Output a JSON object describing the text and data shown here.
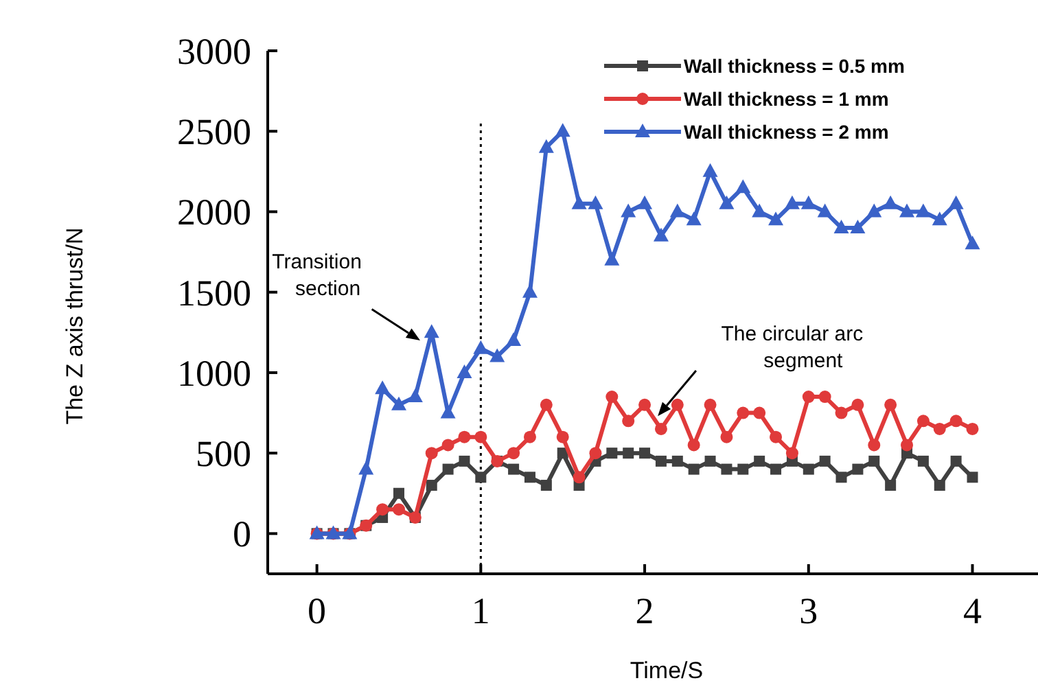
{
  "chart_data": {
    "type": "line",
    "xlabel": "Time/S",
    "ylabel": "The Z axis thrust/N",
    "x": [
      0,
      0.1,
      0.2,
      0.3,
      0.4,
      0.5,
      0.6,
      0.7,
      0.8,
      0.9,
      1,
      1.1,
      1.2,
      1.3,
      1.4,
      1.5,
      1.6,
      1.7,
      1.8,
      1.9,
      2,
      2.1,
      2.2,
      2.3,
      2.4,
      2.5,
      2.6,
      2.7,
      2.8,
      2.9,
      3,
      3.1,
      3.2,
      3.3,
      3.4,
      3.5,
      3.6,
      3.7,
      3.8,
      3.9,
      4
    ],
    "series": [
      {
        "name": "Wall thickness = 0.5 mm",
        "color": "#404040",
        "marker": "square",
        "values": [
          0,
          0,
          0,
          50,
          100,
          250,
          100,
          300,
          400,
          450,
          350,
          450,
          400,
          350,
          300,
          500,
          300,
          450,
          500,
          500,
          500,
          450,
          450,
          400,
          450,
          400,
          400,
          450,
          400,
          450,
          400,
          450,
          350,
          400,
          450,
          300,
          500,
          450,
          300,
          450,
          350
        ]
      },
      {
        "name": "Wall thickness = 1 mm",
        "color": "#e03a3a",
        "marker": "circle",
        "values": [
          0,
          0,
          0,
          50,
          150,
          150,
          100,
          500,
          550,
          600,
          600,
          450,
          500,
          600,
          800,
          600,
          350,
          500,
          850,
          700,
          800,
          650,
          800,
          550,
          800,
          600,
          750,
          750,
          600,
          500,
          850,
          850,
          750,
          800,
          550,
          800,
          550,
          700,
          650,
          700,
          650
        ]
      },
      {
        "name": "Wall thickness = 2 mm",
        "color": "#3a62c8",
        "marker": "triangle",
        "values": [
          0,
          0,
          0,
          400,
          900,
          800,
          850,
          1250,
          750,
          1000,
          1150,
          1100,
          1200,
          1500,
          2400,
          2500,
          2050,
          2050,
          1700,
          2000,
          2050,
          1850,
          2000,
          1950,
          2250,
          2050,
          2150,
          2000,
          1950,
          2050,
          2050,
          2000,
          1900,
          1900,
          2000,
          2050,
          2000,
          2000,
          1950,
          2050,
          1800
        ]
      }
    ],
    "xlim": [
      -0.3,
      4.4
    ],
    "ylim": [
      -250,
      3000
    ],
    "xticks": [
      0,
      1,
      2,
      3,
      4
    ],
    "yticks": [
      0,
      500,
      1000,
      1500,
      2000,
      2500,
      3000
    ],
    "ref_lines": [
      {
        "axis": "x",
        "value": 1,
        "line_style": "dotted",
        "color": "#000000"
      }
    ],
    "annotations": [
      "Transition section",
      "The circular arc segment"
    ],
    "legend": "top right",
    "line_style": "solid",
    "grid": false
  }
}
